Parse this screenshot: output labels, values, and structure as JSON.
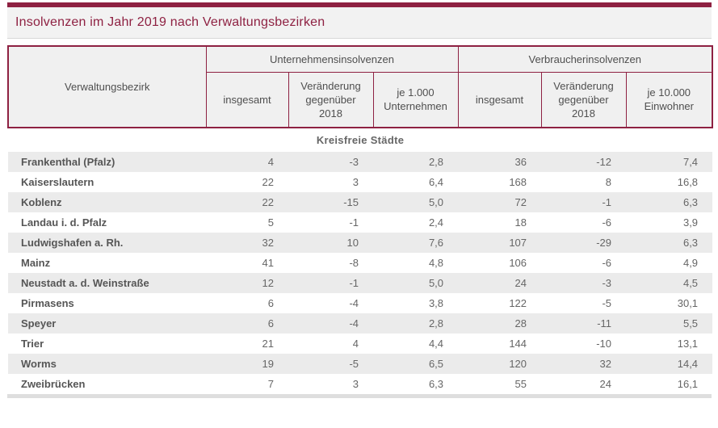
{
  "header": {
    "title": "Insolvenzen im Jahr 2019 nach Verwaltungsbezirken"
  },
  "table": {
    "row_header": "Verwaltungsbezirk",
    "groups": [
      {
        "label": "Unternehmensinsolvenzen",
        "columns": [
          "insgesamt",
          "Veränderung gegenüber 2018",
          "je 1.000 Unternehmen"
        ]
      },
      {
        "label": "Verbraucherinsolvenzen",
        "columns": [
          "insgesamt",
          "Veränderung gegenüber 2018",
          "je 10.000 Einwohner"
        ]
      }
    ],
    "section_label": "Kreisfreie Städte"
  },
  "colors": {
    "accent": "#8e2142",
    "banner_bg": "#f2f2f2",
    "header_cell_bg": "#f0f0f0",
    "row_alt_bg": "#ebebeb",
    "text_gray": "#565656"
  },
  "chart_data": {
    "type": "table",
    "title": "Insolvenzen im Jahr 2019 nach Verwaltungsbezirken",
    "columns": [
      "Verwaltungsbezirk",
      "Unternehmensinsolvenzen insgesamt",
      "Unternehmensinsolvenzen Veränderung gegenüber 2018",
      "Unternehmensinsolvenzen je 1.000 Unternehmen",
      "Verbraucherinsolvenzen insgesamt",
      "Verbraucherinsolvenzen Veränderung gegenüber 2018",
      "Verbraucherinsolvenzen je 10.000 Einwohner"
    ],
    "section": "Kreisfreie Städte",
    "rows": [
      {
        "name": "Frankenthal (Pfalz)",
        "values": [
          "4",
          "-3",
          "2,8",
          "36",
          "-12",
          "7,4"
        ]
      },
      {
        "name": "Kaiserslautern",
        "values": [
          "22",
          "3",
          "6,4",
          "168",
          "8",
          "16,8"
        ]
      },
      {
        "name": "Koblenz",
        "values": [
          "22",
          "-15",
          "5,0",
          "72",
          "-1",
          "6,3"
        ]
      },
      {
        "name": "Landau i. d. Pfalz",
        "values": [
          "5",
          "-1",
          "2,4",
          "18",
          "-6",
          "3,9"
        ]
      },
      {
        "name": "Ludwigshafen a. Rh.",
        "values": [
          "32",
          "10",
          "7,6",
          "107",
          "-29",
          "6,3"
        ]
      },
      {
        "name": "Mainz",
        "values": [
          "41",
          "-8",
          "4,8",
          "106",
          "-6",
          "4,9"
        ]
      },
      {
        "name": "Neustadt a. d. Weinstraße",
        "values": [
          "12",
          "-1",
          "5,0",
          "24",
          "-3",
          "4,5"
        ]
      },
      {
        "name": "Pirmasens",
        "values": [
          "6",
          "-4",
          "3,8",
          "122",
          "-5",
          "30,1"
        ]
      },
      {
        "name": "Speyer",
        "values": [
          "6",
          "-4",
          "2,8",
          "28",
          "-11",
          "5,5"
        ]
      },
      {
        "name": "Trier",
        "values": [
          "21",
          "4",
          "4,4",
          "144",
          "-10",
          "13,1"
        ]
      },
      {
        "name": "Worms",
        "values": [
          "19",
          "-5",
          "6,5",
          "120",
          "32",
          "14,4"
        ]
      },
      {
        "name": "Zweibrücken",
        "values": [
          "7",
          "3",
          "6,3",
          "55",
          "24",
          "16,1"
        ]
      }
    ]
  }
}
